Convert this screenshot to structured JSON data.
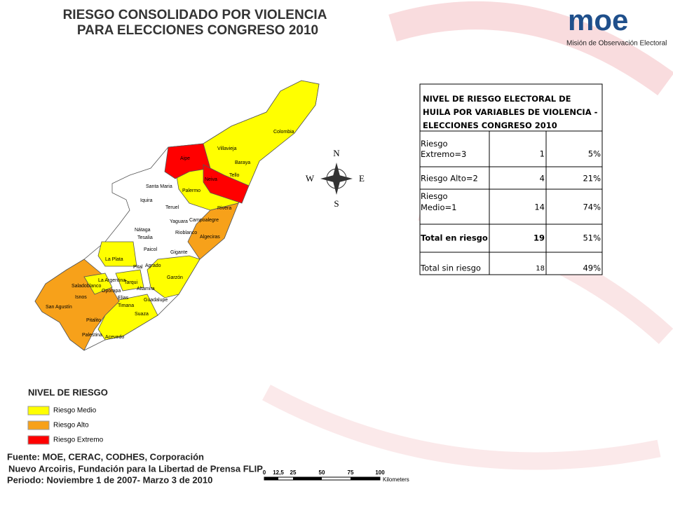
{
  "header": {
    "title_line1": "RIESGO CONSOLIDADO POR VIOLENCIA",
    "title_line2": "PARA ELECCIONES CONGRESO 2010"
  },
  "logo": {
    "mark": "moe",
    "name": "Misión de Observación Electoral"
  },
  "table": {
    "title": "NIVEL DE RIESGO ELECTORAL DE HUILA POR VARIABLES DE VIOLENCIA - ELECCIONES CONGRESO 2010",
    "rows": [
      [
        "Riesgo Extremo=3",
        1,
        "5%"
      ],
      [
        "Riesgo Alto=2",
        4,
        "21%"
      ],
      [
        "Riesgo Medio=1",
        14,
        "74%"
      ],
      [
        "Total en riesgo",
        19,
        "51%"
      ],
      [
        "Total sin riesgo",
        18,
        "49%"
      ]
    ]
  },
  "map": {
    "municipalities": [
      "Colombia",
      "Villavieja",
      "Baraya",
      "Aipe",
      "Tello",
      "Neiva",
      "Santa Maria",
      "Palermo",
      "Iquira",
      "Teruel",
      "Rivera",
      "Yaguara",
      "Campoalegre",
      "Rioblanco",
      "Algeciras",
      "Nátaga",
      "Tesalia",
      "Paicol",
      "Gigante",
      "La Plata",
      "Pital",
      "Agrado",
      "La Argentina",
      "Tarqui",
      "Saladoblanco",
      "Altamira",
      "Garzón",
      "Oporapa",
      "Isnos",
      "Elias",
      "Timana",
      "Guadalupe",
      "San Agustín",
      "Suaza",
      "Pitalito",
      "Palestina",
      "Acevedo"
    ],
    "compass": {
      "north": "N",
      "east": "E",
      "south": "S",
      "west": "W"
    }
  },
  "legend": {
    "title": "NIVEL DE RIESGO",
    "items": [
      "Riesgo Medio",
      "Riesgo Alto",
      "Riesgo Extremo"
    ]
  },
  "source": [
    "Fuente: MOE, CERAC, CODHES, Corporación",
    "Nuevo Arcoiris, Fundación para la Libertad de Prensa FLIP",
    "Periodo: Noviembre 1 de 2007- Marzo 3 de 2010"
  ],
  "scale": {
    "ticks": [
      "0",
      "12,5",
      "25",
      "50",
      "75",
      "100"
    ],
    "unit": "Kilometers"
  }
}
